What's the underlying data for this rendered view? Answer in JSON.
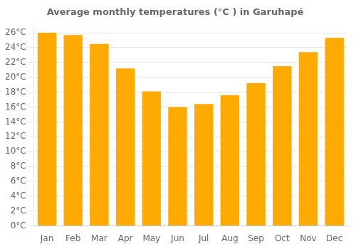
{
  "chart_data": {
    "type": "bar",
    "title": "Average monthly temperatures (°C ) in Garuhapé",
    "categories": [
      "Jan",
      "Feb",
      "Mar",
      "Apr",
      "May",
      "Jun",
      "Jul",
      "Aug",
      "Sep",
      "Oct",
      "Nov",
      "Dec"
    ],
    "values": [
      26.0,
      25.7,
      24.5,
      21.2,
      18.1,
      16.0,
      16.4,
      17.6,
      19.2,
      21.5,
      23.4,
      25.3
    ],
    "color": "#FFAA00",
    "ylim": [
      0,
      27
    ],
    "yticks": [
      {
        "value": 0,
        "label": "0°C"
      },
      {
        "value": 2,
        "label": "2°C"
      },
      {
        "value": 4,
        "label": "4°C"
      },
      {
        "value": 6,
        "label": "6°C"
      },
      {
        "value": 8,
        "label": "8°C"
      },
      {
        "value": 10,
        "label": "10°C"
      },
      {
        "value": 12,
        "label": "12°C"
      },
      {
        "value": 14,
        "label": "14°C"
      },
      {
        "value": 16,
        "label": "16°C"
      },
      {
        "value": 18,
        "label": "18°C"
      },
      {
        "value": 20,
        "label": "20°C"
      },
      {
        "value": 22,
        "label": "22°C"
      },
      {
        "value": 24,
        "label": "24°C"
      },
      {
        "value": 26,
        "label": "26°C"
      }
    ],
    "grid": true
  }
}
